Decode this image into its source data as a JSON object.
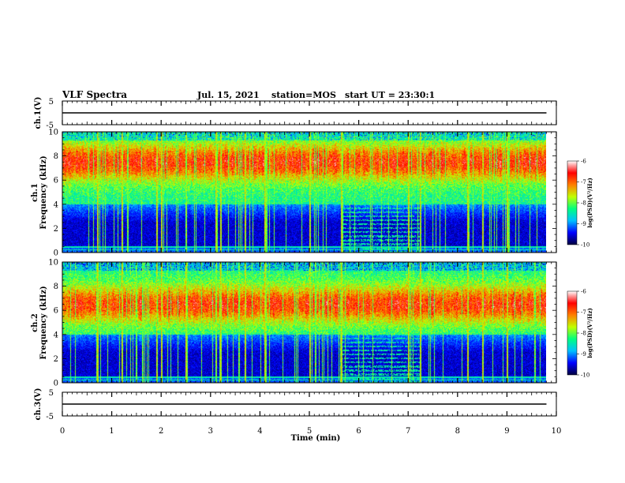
{
  "header": {
    "title": "VLF Spectra",
    "date": "Jul. 15, 2021",
    "station": "station=MOS",
    "start": "start UT = 23:30:1"
  },
  "chart_data": [
    {
      "type": "line",
      "panel": "ch1-voltage",
      "ylabel": "ch.1(V)",
      "ylim": [
        -5,
        5
      ],
      "yticks": [
        "5",
        "-5"
      ],
      "series": [
        {
          "x": [
            0,
            9.8
          ],
          "values": [
            0,
            0
          ]
        }
      ]
    },
    {
      "type": "heatmap",
      "panel": "ch1-spectrogram",
      "ylabel": "ch.1\nFrequency (kHz)",
      "ylabel_lines": [
        "ch.1",
        "Frequency (kHz)"
      ],
      "ylim": [
        0,
        10
      ],
      "yticks": [
        "0",
        "2",
        "4",
        "6",
        "8",
        "10"
      ],
      "colorbar": {
        "label": "log(PSD)(V²/Hz)",
        "ticks": [
          "-6",
          "-7",
          "-8",
          "-9",
          "-10"
        ],
        "range": [
          -10,
          -6
        ]
      },
      "intense_band_khz": [
        6,
        9
      ],
      "quiet_band_khz": [
        0,
        4
      ],
      "spikes_min": [
        0.7,
        1.2,
        1.9,
        2.0,
        2.5,
        3.1,
        3.2,
        3.7,
        4.1,
        5.0,
        5.65,
        7.0,
        7.25,
        8.2,
        8.5,
        9.0
      ],
      "interference_min": [
        5.65,
        7.25
      ]
    },
    {
      "type": "heatmap",
      "panel": "ch2-spectrogram",
      "ylabel": "ch.2\nFrequency (kHz)",
      "ylabel_lines": [
        "ch.2",
        "Frequency (kHz)"
      ],
      "ylim": [
        0,
        10
      ],
      "yticks": [
        "0",
        "2",
        "4",
        "6",
        "8",
        "10"
      ],
      "colorbar": {
        "label": "log(PSD)(V²/Hz)",
        "ticks": [
          "-6",
          "-7",
          "-8",
          "-9",
          "-10"
        ],
        "range": [
          -10,
          -6
        ]
      },
      "intense_band_khz": [
        5,
        8
      ],
      "quiet_band_khz": [
        0,
        4
      ],
      "spikes_min": [
        0.7,
        1.2,
        1.9,
        2.0,
        2.5,
        3.1,
        3.2,
        3.7,
        4.1,
        5.0,
        5.65,
        7.0,
        7.25,
        8.2,
        8.5,
        9.0
      ],
      "interference_min": [
        5.65,
        7.25
      ]
    },
    {
      "type": "line",
      "panel": "ch3-voltage",
      "ylabel": "ch.3(V)",
      "ylim": [
        -5,
        5
      ],
      "yticks": [
        "5",
        "-5"
      ],
      "series": [
        {
          "x": [
            0,
            9.8
          ],
          "values": [
            0,
            0
          ]
        }
      ]
    }
  ],
  "xaxis": {
    "label": "Time (min)",
    "ticks": [
      "0",
      "1",
      "2",
      "3",
      "4",
      "5",
      "6",
      "7",
      "8",
      "9",
      "10"
    ],
    "xlim": [
      0,
      10
    ]
  },
  "colors": {
    "colormap": [
      "#000040",
      "#0000ff",
      "#00c0ff",
      "#00ff80",
      "#c0ff00",
      "#ff8000",
      "#ff0000",
      "#ffffff"
    ]
  }
}
